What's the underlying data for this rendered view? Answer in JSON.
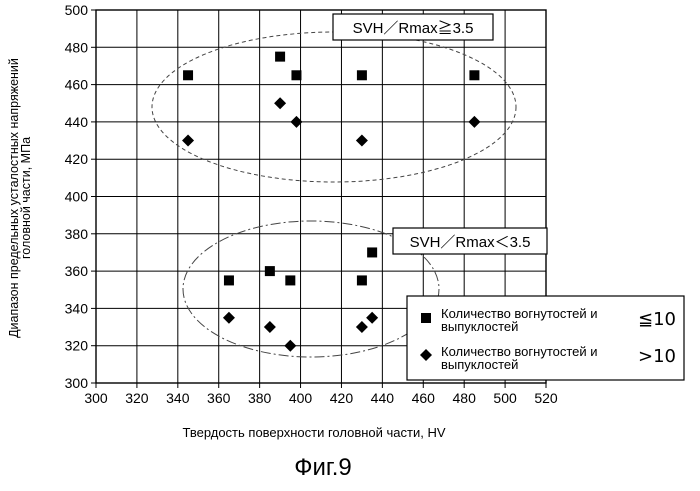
{
  "chart_data": {
    "type": "scatter",
    "xlabel": "Твердость поверхности головной части, HV",
    "ylabel_lines": [
      "Диапазон предельных усталостных напряжений",
      "головной части, МПа"
    ],
    "xlim": [
      300,
      520
    ],
    "ylim": [
      300,
      500
    ],
    "xticks": [
      "300",
      "320",
      "340",
      "360",
      "380",
      "400",
      "420",
      "440",
      "460",
      "480",
      "500",
      "520"
    ],
    "yticks": [
      "300",
      "320",
      "340",
      "360",
      "380",
      "400",
      "420",
      "440",
      "460",
      "480",
      "500"
    ],
    "grid": true,
    "series": [
      {
        "name_lines": [
          "Количество вогнутостей и",
          "выпуклостей"
        ],
        "condition": "≦10",
        "marker": "square",
        "color": "#000000",
        "x": [
          345,
          390,
          398,
          430,
          485,
          365,
          385,
          395,
          430,
          435
        ],
        "y": [
          465,
          475,
          465,
          465,
          465,
          355,
          360,
          355,
          355,
          370
        ]
      },
      {
        "name_lines": [
          "Количество вогнутостей и",
          "выпуклостей"
        ],
        "condition": ">10",
        "marker": "diamond",
        "color": "#000000",
        "x": [
          345,
          390,
          398,
          430,
          485,
          365,
          385,
          395,
          430,
          435
        ],
        "y": [
          430,
          450,
          440,
          430,
          440,
          335,
          330,
          320,
          330,
          335
        ]
      }
    ],
    "annotations": [
      {
        "text": "SVH／Rmax≧3.5"
      },
      {
        "text": "SVH／Rmax＜3.5"
      }
    ],
    "legend_position": "lower-right"
  },
  "caption": "Фиг.9"
}
